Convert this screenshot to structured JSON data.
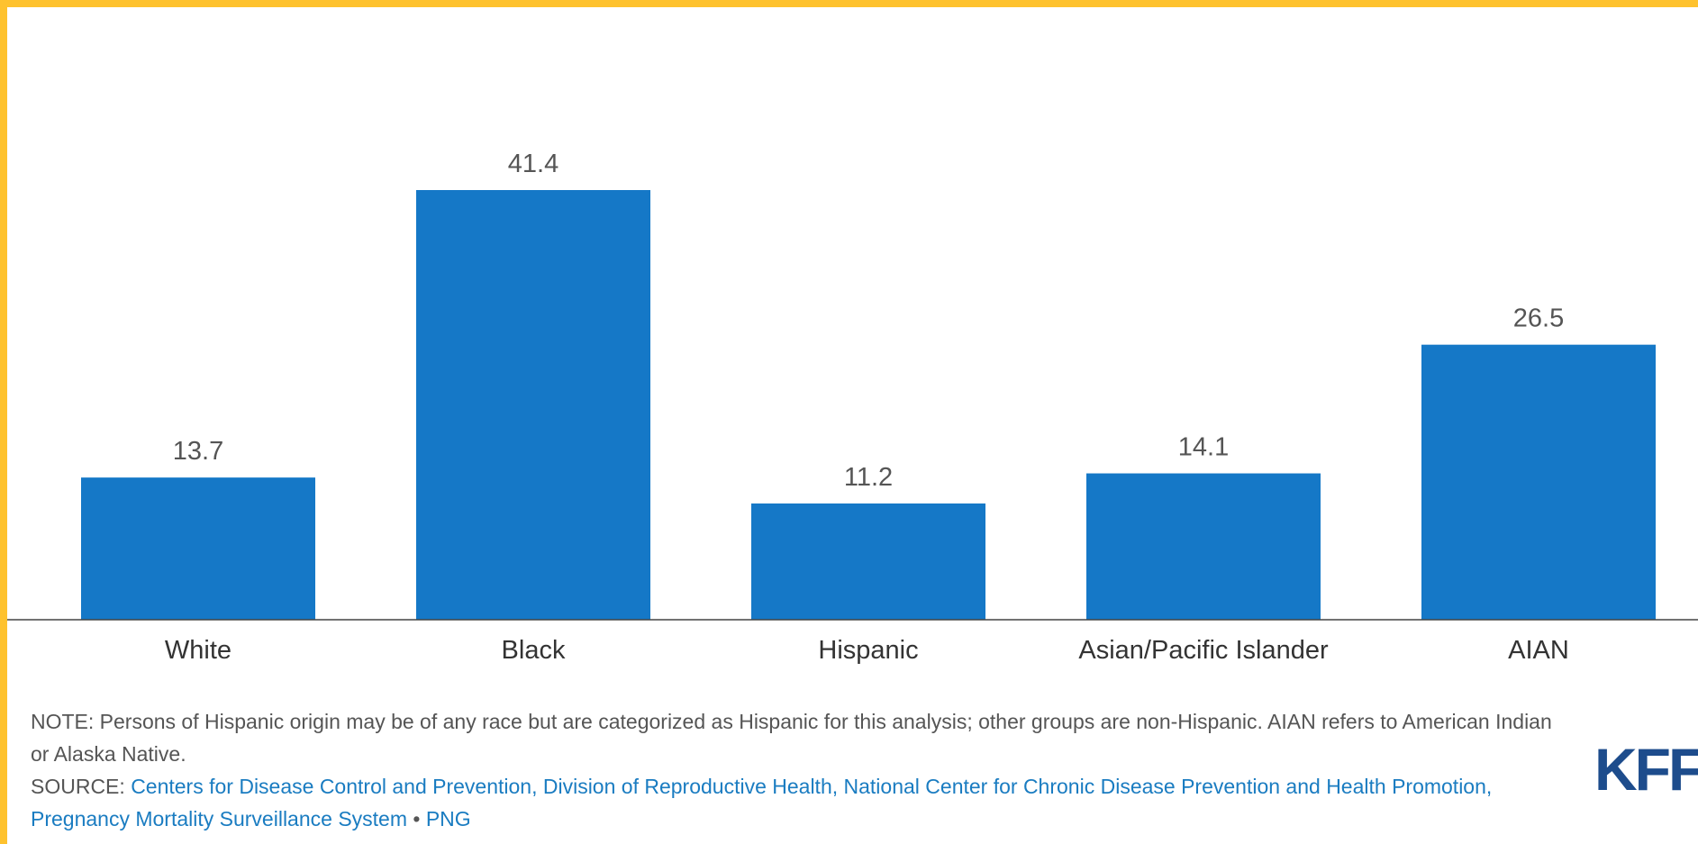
{
  "chart_data": {
    "type": "bar",
    "categories": [
      "White",
      "Black",
      "Hispanic",
      "Asian/Pacific Islander",
      "AIAN"
    ],
    "values": [
      13.7,
      41.4,
      11.2,
      14.1,
      26.5
    ],
    "value_labels": [
      "13.7",
      "41.4",
      "11.2",
      "14.1",
      "26.5"
    ],
    "title": "",
    "xlabel": "",
    "ylabel": "",
    "ylim": [
      0,
      46
    ],
    "grid": false,
    "bar_color": "#1578c7"
  },
  "footnotes": {
    "note": "NOTE: Persons of Hispanic origin may be of any race but are categorized as Hispanic for this analysis; other groups are non-Hispanic. AIAN refers to American Indian or Alaska Native.",
    "source_prefix": "SOURCE: ",
    "source_text": "Centers for Disease Control and Prevention, Division of Reproductive Health, National Center for Chronic Disease Prevention and Health Promotion, Pregnancy Mortality Surveillance System",
    "separator": " • ",
    "png_link": "PNG"
  },
  "logo": {
    "text": "KFF"
  },
  "colors": {
    "frame": "#fec22e",
    "bar": "#1578c7",
    "link": "#1a7cc1"
  }
}
